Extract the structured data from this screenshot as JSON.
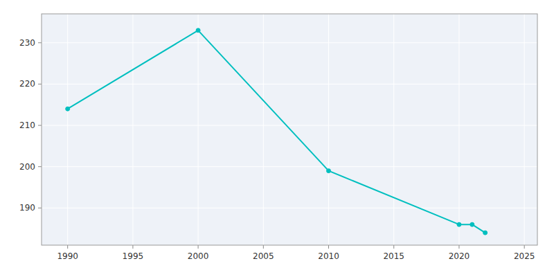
{
  "chart_data": {
    "type": "line",
    "x": [
      1990,
      2000,
      2010,
      2020,
      2021,
      2022
    ],
    "values": [
      214,
      233,
      199,
      186,
      186,
      184
    ],
    "color": "#00BFBF",
    "marker": "circle",
    "xlim": [
      1988,
      2026
    ],
    "ylim": [
      181,
      237
    ],
    "xticks": [
      1990,
      1995,
      2000,
      2005,
      2010,
      2015,
      2020,
      2025
    ],
    "yticks": [
      190,
      200,
      210,
      220,
      230
    ],
    "grid": true
  }
}
